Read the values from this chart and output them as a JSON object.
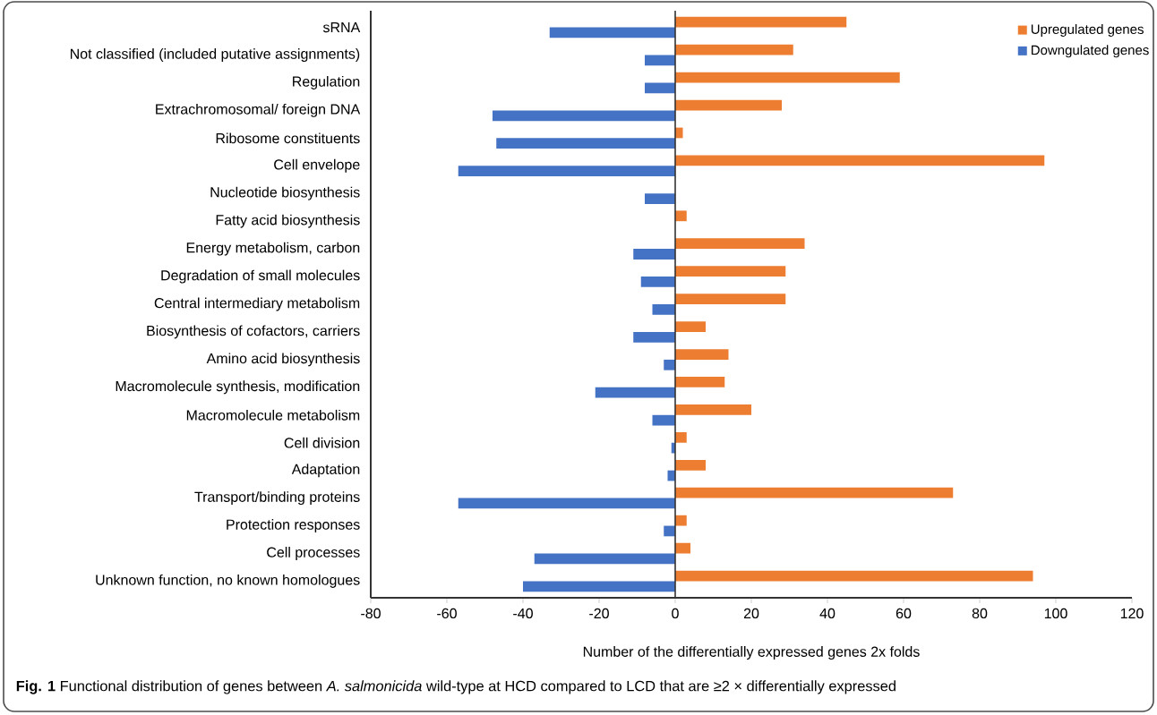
{
  "chart_data": {
    "type": "bar",
    "orientation": "horizontal",
    "categories": [
      "sRNA",
      "Not classified (included putative assignments)",
      "Regulation",
      "Extrachromosomal/ foreign DNA",
      "Ribosome constituents",
      "Cell envelope",
      "Nucleotide biosynthesis",
      "Fatty acid biosynthesis",
      "Energy metabolism, carbon",
      "Degradation of small molecules",
      "Central intermediary metabolism",
      "Biosynthesis of cofactors, carriers",
      "Amino acid biosynthesis",
      "Macromolecule synthesis, modification",
      "Macromolecule metabolism",
      "Cell division",
      "Adaptation",
      "Transport/binding proteins",
      "Protection responses",
      "Cell processes",
      "Unknown function, no known homologues"
    ],
    "series": [
      {
        "name": "Upregulated genes",
        "color": "#ed7d31",
        "values": [
          45,
          31,
          59,
          28,
          2,
          97,
          null,
          3,
          34,
          29,
          29,
          8,
          14,
          13,
          20,
          3,
          8,
          73,
          3,
          4,
          94
        ]
      },
      {
        "name": "Downgulated genes",
        "color": "#4472c4",
        "values": [
          -33,
          -8,
          -8,
          -48,
          -47,
          -57,
          -8,
          null,
          -11,
          -9,
          -6,
          -11,
          -3,
          -21,
          -6,
          -1,
          -2,
          -57,
          -3,
          -37,
          -40
        ]
      }
    ],
    "xlim": [
      -80,
      120
    ],
    "xticks": [
      -80,
      -60,
      -40,
      -20,
      0,
      20,
      40,
      60,
      80,
      100,
      120
    ],
    "xlabel": "Number of the differentially expressed genes 2x folds",
    "legend": "top right",
    "annotations": [
      "**Fig. 1** Functional distribution of genes between *A. salmonicida* wild-type at HCD compared to LCD that are ≥2 × differentially expressed"
    ]
  }
}
